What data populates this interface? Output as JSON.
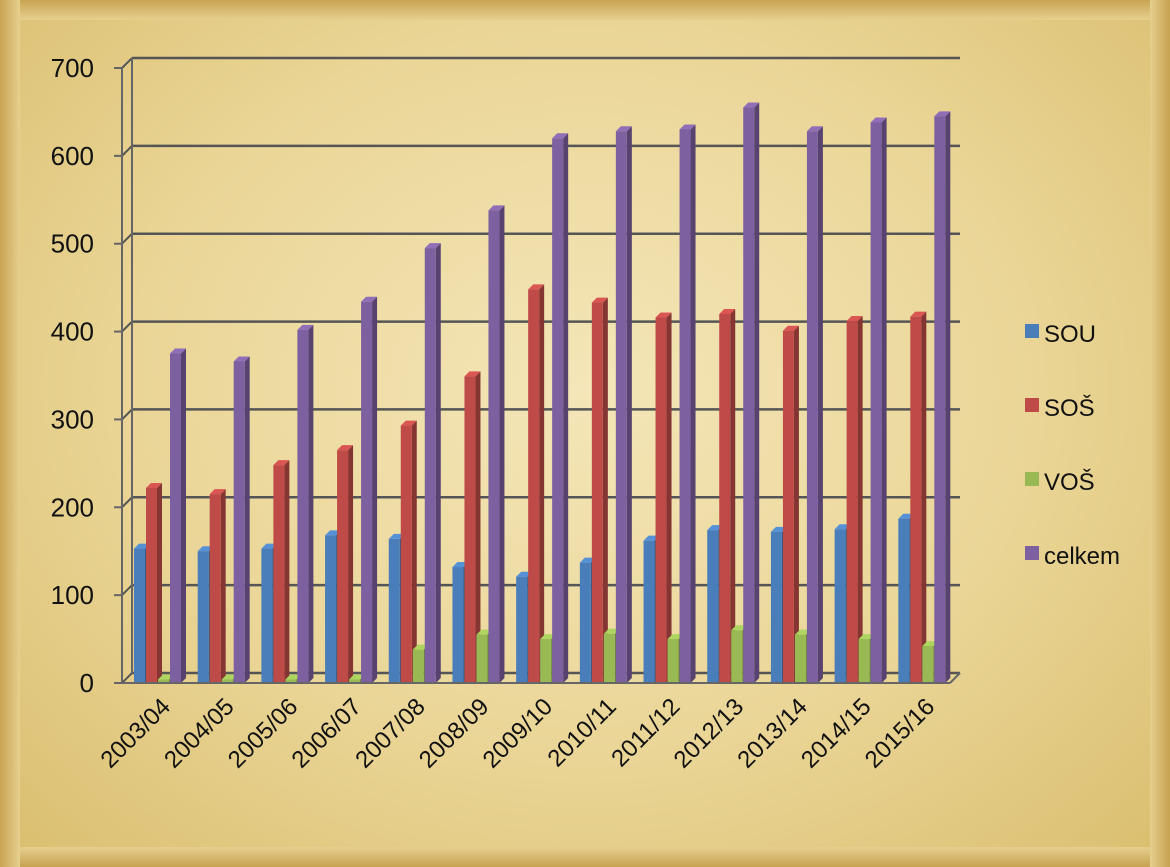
{
  "chart_data": {
    "type": "bar",
    "title": "",
    "xlabel": "",
    "ylabel": "",
    "ylim": [
      0,
      700
    ],
    "yticks": [
      0,
      100,
      200,
      300,
      400,
      500,
      600,
      700
    ],
    "grid": true,
    "legend_position": "right",
    "categories": [
      "2003/04",
      "2004/05",
      "2005/06",
      "2006/07",
      "2007/08",
      "2008/09",
      "2009/10",
      "2010/11",
      "2011/12",
      "2012/13",
      "2013/14",
      "2014/15",
      "2015/16"
    ],
    "series": [
      {
        "name": "SOU",
        "color": "#4a7ebb",
        "values": [
          153,
          150,
          153,
          168,
          164,
          132,
          121,
          137,
          162,
          174,
          172,
          175,
          187
        ]
      },
      {
        "name": "SOŠ",
        "color": "#be4b48",
        "values": [
          222,
          215,
          248,
          265,
          293,
          349,
          448,
          433,
          416,
          420,
          401,
          412,
          417
        ]
      },
      {
        "name": "VOŠ",
        "color": "#98b954",
        "values": [
          4,
          4,
          4,
          4,
          38,
          55,
          50,
          56,
          50,
          60,
          55,
          50,
          42
        ]
      },
      {
        "name": "celkem",
        "color": "#7d60a0",
        "values": [
          375,
          366,
          402,
          434,
          495,
          538,
          620,
          628,
          630,
          655,
          628,
          638,
          645
        ]
      }
    ]
  }
}
